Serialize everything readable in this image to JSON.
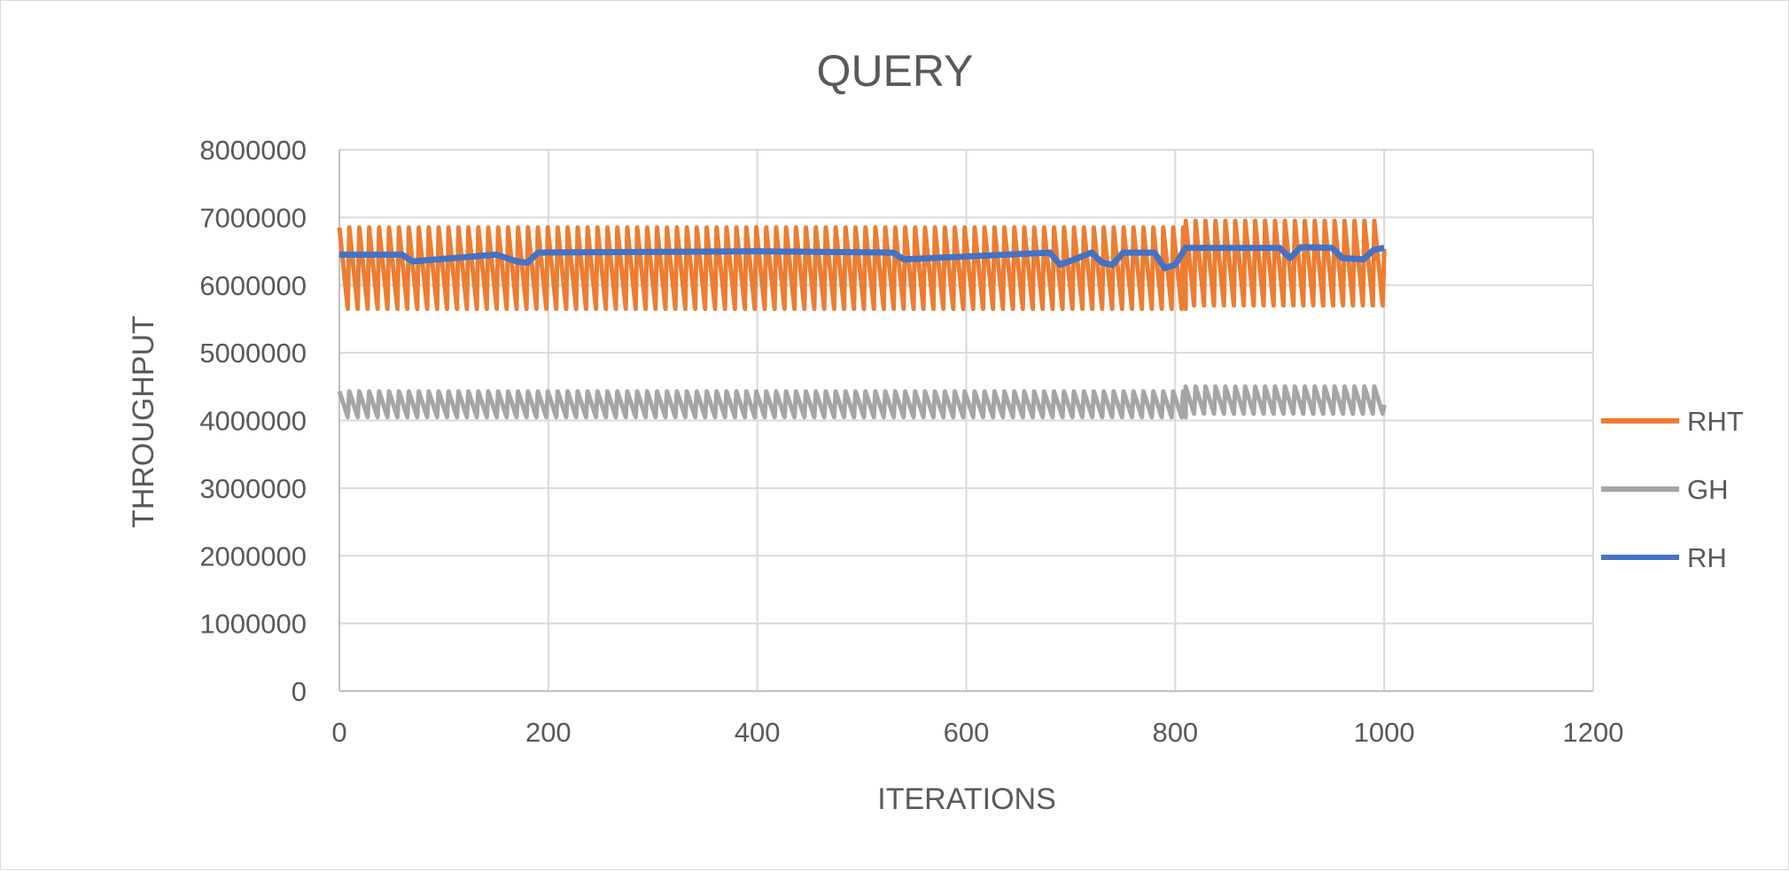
{
  "chart_data": {
    "type": "line",
    "title": "QUERY",
    "xlabel": "ITERATIONS",
    "ylabel": "THROUGHPUT",
    "xlim": [
      0,
      1200
    ],
    "ylim": [
      0,
      8000000
    ],
    "x_ticks": [
      0,
      200,
      400,
      600,
      800,
      1000,
      1200
    ],
    "y_ticks": [
      0,
      1000000,
      2000000,
      3000000,
      4000000,
      5000000,
      6000000,
      7000000,
      8000000
    ],
    "grid": true,
    "legend_position": "right",
    "series": [
      {
        "name": "RHT",
        "color": "#ED7D31",
        "pattern": "sawtooth",
        "x_range": [
          0,
          1000
        ],
        "period": 9.5,
        "high": 6850000,
        "low": 5650000,
        "segments": [
          {
            "x": [
              0,
              810
            ],
            "high": 6850000,
            "low": 5650000
          },
          {
            "x": [
              810,
              1000
            ],
            "high": 6950000,
            "low": 5700000
          }
        ]
      },
      {
        "name": "GH",
        "color": "#A5A5A5",
        "pattern": "sawtooth",
        "x_range": [
          0,
          1000
        ],
        "period": 9.5,
        "high": 4400000,
        "low": 4050000,
        "segments": [
          {
            "x": [
              0,
              810
            ],
            "high": 4430000,
            "low": 4050000
          },
          {
            "x": [
              810,
              1000
            ],
            "high": 4500000,
            "low": 4100000
          }
        ]
      },
      {
        "name": "RH",
        "color": "#4472C4",
        "pattern": "plateau",
        "x": [
          0,
          60,
          70,
          150,
          160,
          170,
          180,
          190,
          400,
          530,
          540,
          680,
          690,
          720,
          730,
          740,
          750,
          780,
          790,
          800,
          810,
          900,
          910,
          920,
          950,
          960,
          980,
          990,
          1000
        ],
        "y": [
          6450000,
          6450000,
          6350000,
          6450000,
          6400000,
          6350000,
          6330000,
          6480000,
          6500000,
          6480000,
          6380000,
          6480000,
          6300000,
          6480000,
          6330000,
          6300000,
          6480000,
          6480000,
          6250000,
          6300000,
          6550000,
          6550000,
          6400000,
          6560000,
          6550000,
          6400000,
          6380000,
          6520000,
          6550000
        ]
      }
    ]
  }
}
